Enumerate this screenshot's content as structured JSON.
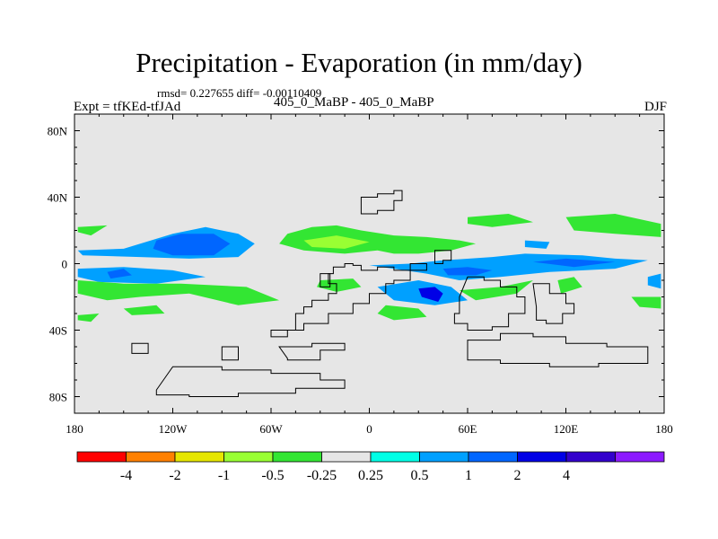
{
  "chart_data": {
    "type": "heatmap",
    "title": "Precipitation - Evaporation (in mm/day)",
    "stats": "rmsd= 0.227655 diff= -0.00110409",
    "left_label": "Expt = tfKEd-tfJAd",
    "center_label": "405_0_MaBP - 405_0_MaBP",
    "right_label": "DJF",
    "x_ticks": [
      {
        "lon": -180,
        "label": "180"
      },
      {
        "lon": -120,
        "label": "120W"
      },
      {
        "lon": -60,
        "label": "60W"
      },
      {
        "lon": 0,
        "label": "0"
      },
      {
        "lon": 60,
        "label": "60E"
      },
      {
        "lon": 120,
        "label": "120E"
      },
      {
        "lon": 180,
        "label": "180"
      }
    ],
    "y_ticks": [
      {
        "lat": 80,
        "label": "80N"
      },
      {
        "lat": 40,
        "label": "40N"
      },
      {
        "lat": 0,
        "label": "0"
      },
      {
        "lat": -40,
        "label": "40S"
      },
      {
        "lat": -80,
        "label": "80S"
      }
    ],
    "xlim": [
      -180,
      180
    ],
    "ylim": [
      -90,
      90
    ],
    "colorbar": {
      "colors": [
        "#ff0000",
        "#ff8000",
        "#e6e600",
        "#99ff33",
        "#33e633",
        "#e6e6e6",
        "#00ffe6",
        "#00a0ff",
        "#0066ff",
        "#0000e6",
        "#3300cc",
        "#8c1aff"
      ],
      "labels": [
        "-4",
        "-2",
        "-1",
        "-0.5",
        "-0.25",
        "0.25",
        "0.5",
        "1",
        "2",
        "4"
      ]
    },
    "background_color": "#e6e6e6",
    "regions": [
      {
        "level": "0.5",
        "points": [
          [
            -178,
            8
          ],
          [
            -150,
            9
          ],
          [
            -120,
            18
          ],
          [
            -100,
            22
          ],
          [
            -80,
            18
          ],
          [
            -70,
            12
          ],
          [
            -80,
            4
          ],
          [
            -110,
            3
          ],
          [
            -140,
            4
          ],
          [
            -175,
            5
          ]
        ]
      },
      {
        "level": "0.5",
        "points": [
          [
            -178,
            -3
          ],
          [
            -150,
            -2
          ],
          [
            -120,
            -4
          ],
          [
            -100,
            -8
          ],
          [
            -130,
            -12
          ],
          [
            -165,
            -11
          ],
          [
            -178,
            -8
          ]
        ]
      },
      {
        "level": "1",
        "points": [
          [
            -130,
            14
          ],
          [
            -115,
            18
          ],
          [
            -95,
            18
          ],
          [
            -85,
            12
          ],
          [
            -95,
            5
          ],
          [
            -120,
            5
          ],
          [
            -132,
            9
          ]
        ]
      },
      {
        "level": "1",
        "points": [
          [
            -160,
            -5
          ],
          [
            -150,
            -3
          ],
          [
            -145,
            -7
          ],
          [
            -158,
            -9
          ]
        ]
      },
      {
        "level": "0.5",
        "points": [
          [
            0,
            -1
          ],
          [
            25,
            0
          ],
          [
            45,
            2
          ],
          [
            75,
            4
          ],
          [
            95,
            6
          ],
          [
            130,
            5
          ],
          [
            150,
            3
          ],
          [
            170,
            2
          ],
          [
            150,
            -3
          ],
          [
            110,
            -5
          ],
          [
            80,
            -8
          ],
          [
            55,
            -10
          ],
          [
            35,
            -6
          ],
          [
            15,
            -3
          ]
        ]
      },
      {
        "level": "1",
        "points": [
          [
            45,
            -3
          ],
          [
            60,
            -2
          ],
          [
            75,
            -4
          ],
          [
            65,
            -7
          ],
          [
            48,
            -7
          ]
        ]
      },
      {
        "level": "1",
        "points": [
          [
            100,
            1
          ],
          [
            120,
            3
          ],
          [
            150,
            1
          ],
          [
            125,
            -2
          ]
        ]
      },
      {
        "level": "0.5",
        "points": [
          [
            5,
            -14
          ],
          [
            30,
            -10
          ],
          [
            50,
            -14
          ],
          [
            60,
            -22
          ],
          [
            40,
            -25
          ],
          [
            15,
            -22
          ]
        ]
      },
      {
        "level": "2",
        "points": [
          [
            30,
            -15
          ],
          [
            40,
            -14
          ],
          [
            45,
            -18
          ],
          [
            42,
            -23
          ],
          [
            32,
            -20
          ]
        ]
      },
      {
        "level": "0.5",
        "points": [
          [
            95,
            14
          ],
          [
            110,
            13
          ],
          [
            108,
            9
          ],
          [
            95,
            10
          ]
        ]
      },
      {
        "level": "0.5",
        "points": [
          [
            170,
            -8
          ],
          [
            178,
            -6
          ],
          [
            178,
            -15
          ],
          [
            170,
            -13
          ]
        ]
      },
      {
        "level": "-0.25",
        "points": [
          [
            -178,
            22
          ],
          [
            -160,
            23
          ],
          [
            -170,
            17
          ],
          [
            -178,
            19
          ]
        ]
      },
      {
        "level": "-0.25",
        "points": [
          [
            -178,
            -10
          ],
          [
            -150,
            -12
          ],
          [
            -115,
            -12
          ],
          [
            -75,
            -14
          ],
          [
            -55,
            -22
          ],
          [
            -80,
            -25
          ],
          [
            -110,
            -18
          ],
          [
            -140,
            -20
          ],
          [
            -160,
            -22
          ],
          [
            -178,
            -18
          ]
        ]
      },
      {
        "level": "-0.25",
        "points": [
          [
            -150,
            -27
          ],
          [
            -130,
            -25
          ],
          [
            -125,
            -30
          ],
          [
            -145,
            -31
          ]
        ]
      },
      {
        "level": "-0.25",
        "points": [
          [
            -50,
            18
          ],
          [
            -35,
            22
          ],
          [
            -20,
            23
          ],
          [
            -5,
            20
          ],
          [
            15,
            17
          ],
          [
            35,
            16
          ],
          [
            55,
            14
          ],
          [
            65,
            12
          ],
          [
            50,
            8
          ],
          [
            30,
            6
          ],
          [
            15,
            6
          ],
          [
            5,
            8
          ],
          [
            -15,
            6
          ],
          [
            -40,
            8
          ],
          [
            -55,
            12
          ]
        ]
      },
      {
        "level": "-0.5",
        "points": [
          [
            -40,
            14
          ],
          [
            -20,
            17
          ],
          [
            0,
            13
          ],
          [
            -15,
            9
          ],
          [
            -35,
            10
          ]
        ]
      },
      {
        "level": "-0.25",
        "points": [
          [
            -30,
            -10
          ],
          [
            -10,
            -9
          ],
          [
            -5,
            -14
          ],
          [
            -20,
            -17
          ],
          [
            -32,
            -14
          ]
        ]
      },
      {
        "level": "-0.25",
        "points": [
          [
            10,
            -25
          ],
          [
            30,
            -27
          ],
          [
            35,
            -32
          ],
          [
            15,
            -34
          ],
          [
            5,
            -30
          ]
        ]
      },
      {
        "level": "-0.25",
        "points": [
          [
            60,
            28
          ],
          [
            85,
            30
          ],
          [
            100,
            25
          ],
          [
            75,
            22
          ],
          [
            60,
            24
          ]
        ]
      },
      {
        "level": "-0.25",
        "points": [
          [
            55,
            -16
          ],
          [
            80,
            -14
          ],
          [
            100,
            -10
          ],
          [
            90,
            -18
          ],
          [
            65,
            -22
          ]
        ]
      },
      {
        "level": "-0.25",
        "points": [
          [
            115,
            -10
          ],
          [
            125,
            -8
          ],
          [
            130,
            -14
          ],
          [
            117,
            -18
          ]
        ]
      },
      {
        "level": "-0.25",
        "points": [
          [
            120,
            28
          ],
          [
            150,
            30
          ],
          [
            178,
            24
          ],
          [
            178,
            16
          ],
          [
            150,
            18
          ],
          [
            125,
            20
          ]
        ]
      },
      {
        "level": "-0.25",
        "points": [
          [
            -178,
            -31
          ],
          [
            -165,
            -30
          ],
          [
            -170,
            -35
          ],
          [
            -178,
            -34
          ]
        ]
      },
      {
        "level": "-0.25",
        "points": [
          [
            160,
            -20
          ],
          [
            178,
            -20
          ],
          [
            178,
            -27
          ],
          [
            165,
            -26
          ]
        ]
      }
    ],
    "contours": [
      [
        [
          -60,
          -40
        ],
        [
          -45,
          -30
        ],
        [
          -40,
          -26
        ],
        [
          -35,
          -22
        ],
        [
          -25,
          -18
        ],
        [
          -20,
          -12
        ],
        [
          -25,
          -6
        ],
        [
          -22,
          -2
        ],
        [
          -15,
          0
        ],
        [
          -10,
          -1
        ],
        [
          -5,
          -4
        ],
        [
          5,
          -2
        ],
        [
          15,
          -4
        ],
        [
          25,
          0
        ],
        [
          35,
          -4
        ],
        [
          25,
          -10
        ],
        [
          15,
          -12
        ],
        [
          10,
          -18
        ],
        [
          0,
          -24
        ],
        [
          -10,
          -30
        ],
        [
          -25,
          -36
        ],
        [
          -40,
          -40
        ],
        [
          -50,
          -44
        ],
        [
          -60,
          -44
        ]
      ],
      [
        [
          -55,
          -50
        ],
        [
          -35,
          -48
        ],
        [
          -15,
          -52
        ],
        [
          -30,
          -58
        ],
        [
          -50,
          -57
        ]
      ],
      [
        [
          -5,
          40
        ],
        [
          5,
          42
        ],
        [
          15,
          44
        ],
        [
          20,
          38
        ],
        [
          15,
          32
        ],
        [
          5,
          30
        ],
        [
          -5,
          32
        ]
      ],
      [
        [
          -30,
          -14
        ],
        [
          -24,
          -14
        ],
        [
          -24,
          -6
        ],
        [
          -30,
          -6
        ]
      ],
      [
        [
          40,
          8
        ],
        [
          50,
          8
        ],
        [
          50,
          2
        ],
        [
          45,
          0
        ],
        [
          40,
          2
        ]
      ],
      [
        [
          60,
          -8
        ],
        [
          70,
          -10
        ],
        [
          80,
          -14
        ],
        [
          90,
          -20
        ],
        [
          95,
          -30
        ],
        [
          85,
          -38
        ],
        [
          75,
          -40
        ],
        [
          60,
          -36
        ],
        [
          52,
          -30
        ],
        [
          55,
          -20
        ]
      ],
      [
        [
          100,
          -12
        ],
        [
          110,
          -18
        ],
        [
          120,
          -24
        ],
        [
          125,
          -30
        ],
        [
          118,
          -36
        ],
        [
          108,
          -34
        ],
        [
          102,
          -26
        ]
      ],
      [
        [
          60,
          -46
        ],
        [
          80,
          -42
        ],
        [
          100,
          -44
        ],
        [
          120,
          -48
        ],
        [
          145,
          -50
        ],
        [
          170,
          -52
        ],
        [
          170,
          -60
        ],
        [
          140,
          -62
        ],
        [
          110,
          -60
        ],
        [
          80,
          -58
        ],
        [
          60,
          -56
        ]
      ],
      [
        [
          -120,
          -62
        ],
        [
          -90,
          -64
        ],
        [
          -60,
          -66
        ],
        [
          -30,
          -70
        ],
        [
          -15,
          -75
        ],
        [
          -45,
          -78
        ],
        [
          -80,
          -80
        ],
        [
          -110,
          -79
        ],
        [
          -130,
          -76
        ]
      ],
      [
        [
          -145,
          -48
        ],
        [
          -135,
          -48
        ],
        [
          -135,
          -54
        ],
        [
          -145,
          -54
        ]
      ],
      [
        [
          -90,
          -50
        ],
        [
          -80,
          -50
        ],
        [
          -80,
          -58
        ],
        [
          -90,
          -58
        ]
      ]
    ]
  }
}
